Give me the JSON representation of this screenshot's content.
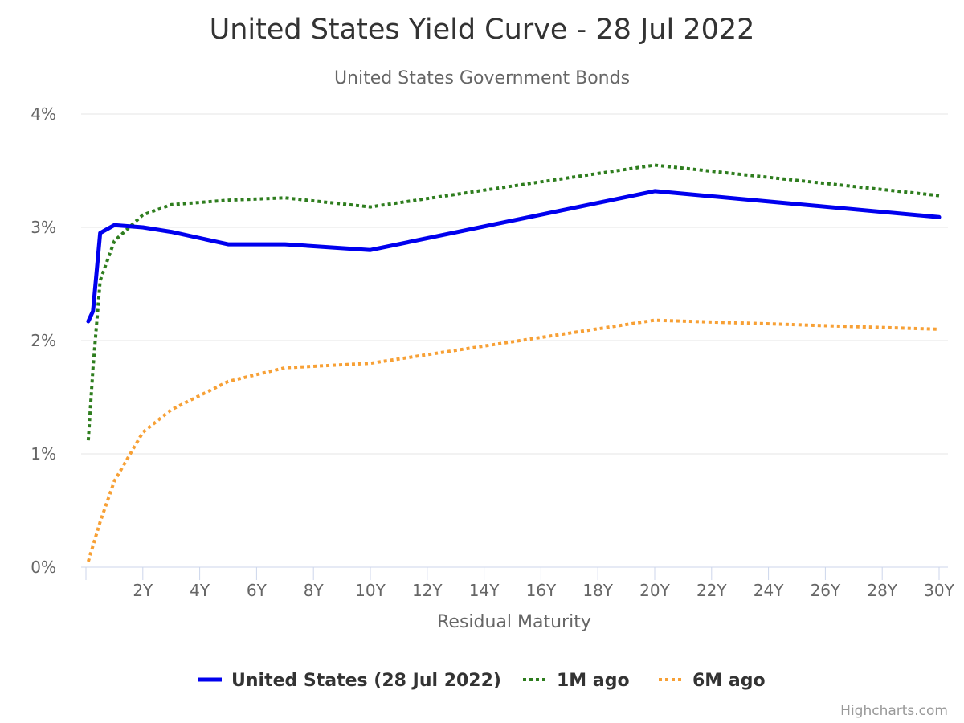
{
  "chart_data": {
    "type": "line",
    "title": "United States Yield Curve - 28 Jul 2022",
    "subtitle": "United States Government Bonds",
    "xlabel": "Residual Maturity",
    "ylabel": "",
    "xlim": [
      0,
      30
    ],
    "ylim": [
      0,
      4
    ],
    "x_ticks": [
      2,
      4,
      6,
      8,
      10,
      12,
      14,
      16,
      18,
      20,
      22,
      24,
      26,
      28,
      30
    ],
    "x_tick_labels": [
      "2Y",
      "4Y",
      "6Y",
      "8Y",
      "10Y",
      "12Y",
      "14Y",
      "16Y",
      "18Y",
      "20Y",
      "22Y",
      "24Y",
      "26Y",
      "28Y",
      "30Y"
    ],
    "y_ticks": [
      0,
      1,
      2,
      3,
      4
    ],
    "y_tick_labels": [
      "0%",
      "1%",
      "2%",
      "3%",
      "4%"
    ],
    "grid": "horizontal",
    "legend_position": "bottom",
    "series": [
      {
        "name": "United States (28 Jul 2022)",
        "color": "#0000ee",
        "style": "solid",
        "x": [
          0.083,
          0.25,
          0.5,
          1,
          2,
          3,
          5,
          7,
          10,
          20,
          30
        ],
        "y": [
          2.17,
          2.26,
          2.95,
          3.02,
          3.0,
          2.96,
          2.85,
          2.85,
          2.8,
          3.32,
          3.09
        ]
      },
      {
        "name": "1M ago",
        "color": "#2e7d1e",
        "style": "dotted",
        "x": [
          0.083,
          0.25,
          0.5,
          1,
          2,
          3,
          5,
          7,
          10,
          20,
          30
        ],
        "y": [
          1.12,
          1.76,
          2.53,
          2.88,
          3.11,
          3.2,
          3.24,
          3.26,
          3.18,
          3.55,
          3.28
        ]
      },
      {
        "name": "6M ago",
        "color": "#f7a035",
        "style": "dotted",
        "x": [
          0.083,
          0.25,
          0.5,
          1,
          2,
          3,
          5,
          7,
          10,
          20,
          30
        ],
        "y": [
          0.05,
          0.19,
          0.4,
          0.76,
          1.19,
          1.39,
          1.64,
          1.76,
          1.8,
          2.18,
          2.1
        ]
      }
    ]
  },
  "credits": "Highcharts.com"
}
